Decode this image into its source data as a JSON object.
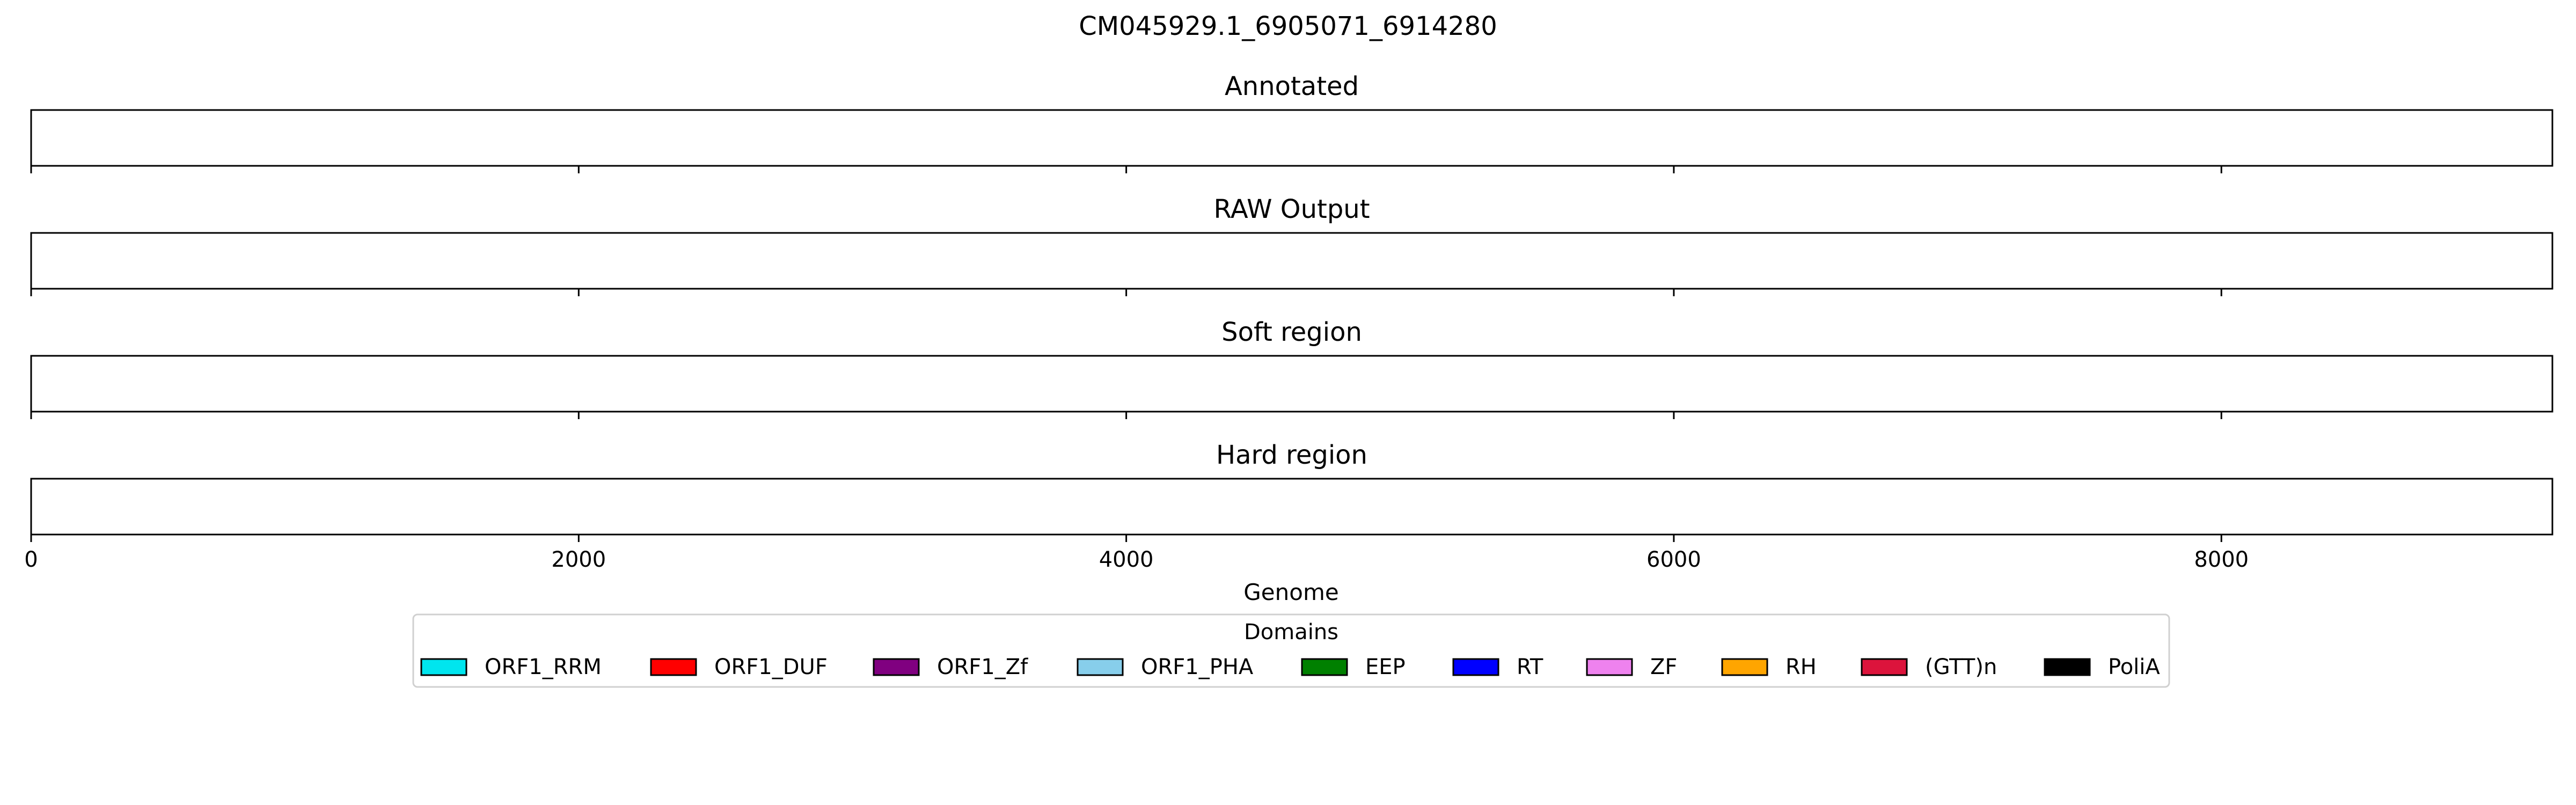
{
  "chart_data": {
    "type": "bar",
    "title": "CM045929.1_6905071_6914280",
    "xlabel": "Genome",
    "xlim": [
      0,
      9209
    ],
    "xticks": [
      0,
      2000,
      4000,
      6000,
      8000
    ],
    "tick_labels": [
      "0",
      "2000",
      "4000",
      "6000",
      "8000"
    ],
    "panels": [
      {
        "id": "annotated",
        "title": "Annotated",
        "show_tick_labels": false,
        "segments": []
      },
      {
        "id": "raw",
        "title": "RAW Output",
        "show_tick_labels": false,
        "segments": []
      },
      {
        "id": "soft",
        "title": "Soft region",
        "show_tick_labels": false,
        "segments": []
      },
      {
        "id": "hard",
        "title": "Hard region",
        "show_tick_labels": true,
        "segments": []
      }
    ],
    "legend": {
      "title": "Domains",
      "position": "bottom-center",
      "items": [
        {
          "label": "ORF1_RRM",
          "color": "#00e5ee"
        },
        {
          "label": "ORF1_DUF",
          "color": "#ff0000"
        },
        {
          "label": "ORF1_Zf",
          "color": "#800080"
        },
        {
          "label": "ORF1_PHA",
          "color": "#87ceeb"
        },
        {
          "label": "EEP",
          "color": "#008000"
        },
        {
          "label": "RT",
          "color": "#0000ff"
        },
        {
          "label": "ZF",
          "color": "#ee82ee"
        },
        {
          "label": "RH",
          "color": "#ffa500"
        },
        {
          "label": "(GTT)n",
          "color": "#dc143c"
        },
        {
          "label": "PoliA",
          "color": "#000000"
        }
      ]
    }
  }
}
